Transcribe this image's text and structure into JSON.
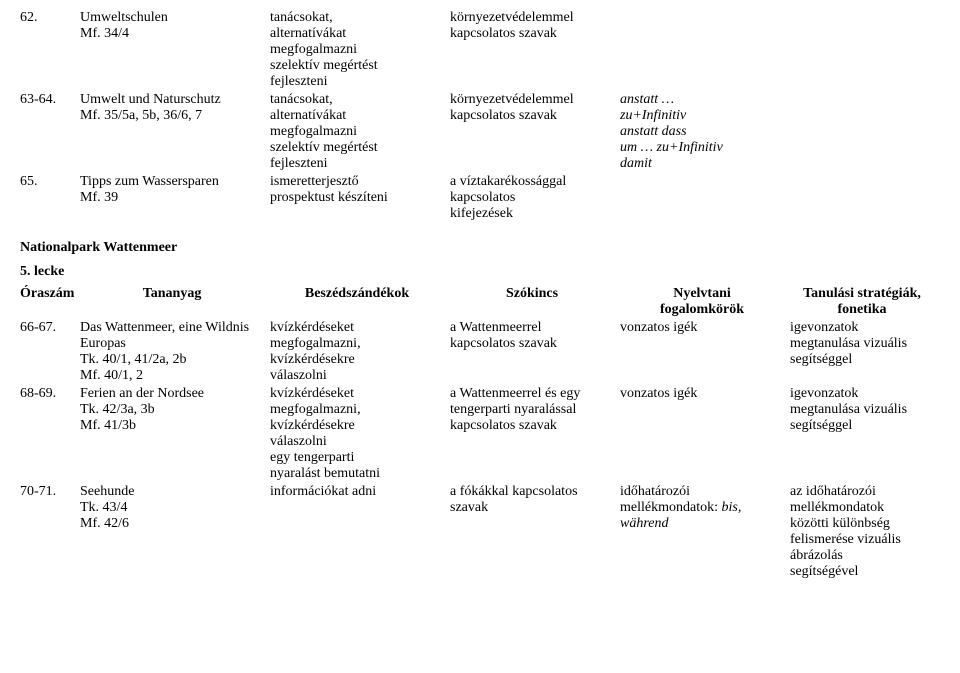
{
  "top_rows": [
    {
      "num": "62.",
      "title": [
        "Umweltschulen",
        "Mf. 34/4"
      ],
      "c3": [
        "tanácsokat,",
        "alternatívákat",
        "megfogalmazni",
        "szelektív megértést",
        "fejleszteni"
      ],
      "c4": [
        "környezetvédelemmel",
        "kapcsolatos szavak"
      ],
      "c5": [],
      "c6": []
    },
    {
      "num": "63-64.",
      "title": [
        "Umwelt und Naturschutz",
        "Mf. 35/5a, 5b, 36/6, 7"
      ],
      "c3": [
        "tanácsokat,",
        "alternatívákat",
        "megfogalmazni",
        "szelektív megértést",
        "fejleszteni"
      ],
      "c4": [
        "környezetvédelemmel",
        "kapcsolatos szavak"
      ],
      "c5": [
        {
          "t": "anstatt …",
          "i": true
        },
        {
          "t": "zu+Infinitiv",
          "i": true
        },
        {
          "t": "anstatt dass",
          "i": true
        },
        {
          "t": "um … zu+Infinitiv",
          "i": true
        },
        {
          "t": "damit",
          "i": true
        }
      ],
      "c6": []
    },
    {
      "num": "65.",
      "title": [
        "Tipps zum Wassersparen",
        "Mf. 39"
      ],
      "c3": [
        "ismeretterjesztő",
        "prospektust készíteni"
      ],
      "c4": [
        "a víztakarékossággal",
        "kapcsolatos",
        "kifejezések"
      ],
      "c5": [],
      "c6": []
    }
  ],
  "section_heading": "Nationalpark Wattenmeer",
  "lecke_heading": "5. lecke",
  "head": {
    "c1": "Óraszám",
    "c2": "Tananyag",
    "c3": "Beszédszándékok",
    "c4": "Szókincs",
    "c5": [
      "Nyelvtani",
      "fogalomkörök"
    ],
    "c6": [
      "Tanulási stratégiák,",
      "fonetika"
    ]
  },
  "bottom_rows": [
    {
      "num": "66-67.",
      "title": [
        "Das Wattenmeer, eine Wildnis",
        "Europas",
        "Tk. 40/1, 41/2a, 2b",
        "Mf. 40/1, 2"
      ],
      "c3": [
        "kvízkérdéseket",
        "megfogalmazni,",
        "kvízkérdésekre",
        "válaszolni"
      ],
      "c4": [
        "a Wattenmeerrel",
        "kapcsolatos szavak"
      ],
      "c5": [
        "vonzatos igék"
      ],
      "c6": [
        "igevonzatok",
        "megtanulása vizuális",
        "segítséggel"
      ]
    },
    {
      "num": "68-69.",
      "title": [
        "Ferien an der Nordsee",
        "Tk. 42/3a, 3b",
        "Mf. 41/3b"
      ],
      "c3": [
        "kvízkérdéseket",
        "megfogalmazni,",
        "kvízkérdésekre",
        "válaszolni",
        "egy tengerparti",
        "nyaralást bemutatni"
      ],
      "c4": [
        "a Wattenmeerrel és egy",
        "tengerparti nyaralással",
        "kapcsolatos szavak"
      ],
      "c5": [
        "vonzatos igék"
      ],
      "c6": [
        "igevonzatok",
        "megtanulása vizuális",
        "segítséggel"
      ]
    },
    {
      "num": "70-71.",
      "title": [
        "Seehunde",
        "Tk. 43/4",
        "Mf. 42/6"
      ],
      "c3": [
        "információkat adni"
      ],
      "c4": [
        "a fókákkal kapcsolatos",
        "szavak"
      ],
      "c5": [
        {
          "t": "időhatározói",
          "i": false
        },
        {
          "t_pre": "mellékmondatok: ",
          "t_it": "bis,",
          "mix": true
        },
        {
          "t": "während",
          "i": true
        }
      ],
      "c6": [
        "az időhatározói",
        "mellékmondatok",
        "közötti különbség",
        "felismerése vizuális",
        "ábrázolás",
        "segítségével"
      ]
    }
  ]
}
